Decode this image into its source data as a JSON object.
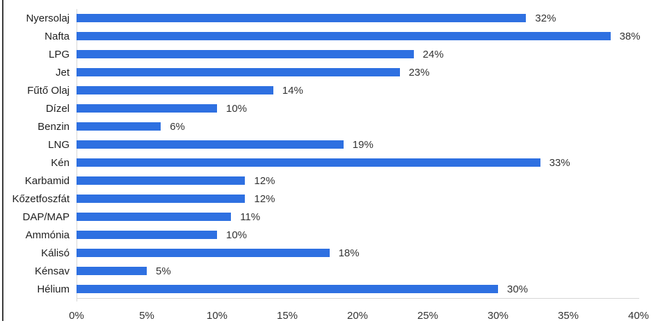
{
  "chart_data": {
    "type": "bar",
    "orientation": "horizontal",
    "title": "",
    "xlabel": "",
    "ylabel": "",
    "categories": [
      "Nyersolaj",
      "Nafta",
      "LPG",
      "Jet",
      "Fűtő Olaj",
      "Dízel",
      "Benzin",
      "LNG",
      "Kén",
      "Karbamid",
      "Kőzetfoszfát",
      "DAP/MAP",
      "Ammónia",
      "Kálisó",
      "Kénsav",
      "Hélium"
    ],
    "values": [
      32,
      38,
      24,
      23,
      14,
      10,
      6,
      19,
      33,
      12,
      12,
      11,
      10,
      18,
      5,
      30
    ],
    "value_labels": [
      "32%",
      "38%",
      "24%",
      "23%",
      "14%",
      "10%",
      "6%",
      "19%",
      "33%",
      "12%",
      "12%",
      "11%",
      "10%",
      "18%",
      "5%",
      "30%"
    ],
    "x_ticks": [
      "0%",
      "5%",
      "10%",
      "15%",
      "20%",
      "25%",
      "30%",
      "35%",
      "40%"
    ],
    "x_tick_values": [
      0,
      5,
      10,
      15,
      20,
      25,
      30,
      35,
      40
    ],
    "xlim": [
      0,
      40
    ],
    "grid": false,
    "legend": false,
    "bar_color": "#2e70e1",
    "axis_line_color": "#d6d6d6",
    "category_text_color": "#1f1f1f",
    "tick_text_color": "#333333",
    "background_color": "#ffffff",
    "window_border_color": "#3a3a3a"
  }
}
